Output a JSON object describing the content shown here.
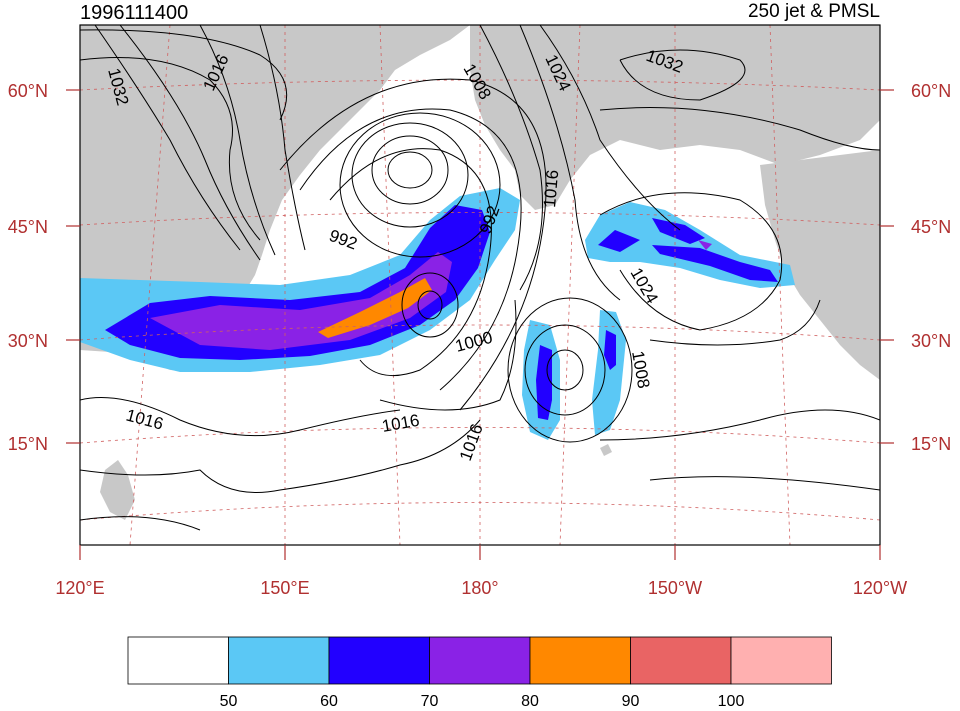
{
  "header": {
    "left_title": "1996111400",
    "right_title": "250 jet & PMSL"
  },
  "lat_labels": [
    "60°N",
    "45°N",
    "30°N",
    "15°N"
  ],
  "lon_labels": [
    "120°E",
    "150°E",
    "180°",
    "150°W",
    "120°W"
  ],
  "isobar_labels": [
    "1032",
    "1016",
    "1008",
    "1024",
    "1032",
    "992",
    "992",
    "1016",
    "1000",
    "1024",
    "1008",
    "1016",
    "1016",
    "1016"
  ],
  "colorbar": {
    "tick_labels": [
      "50",
      "60",
      "70",
      "80",
      "90",
      "100"
    ],
    "colors": [
      "#ffffff",
      "#5bc8f5",
      "#2200ff",
      "#8a22e6",
      "#ff8800",
      "#e96464",
      "#ffb0b0"
    ]
  },
  "colors": {
    "land": "#c8c8c8",
    "ocean": "#ffffff",
    "grid": "#d06060",
    "label": "#b03030",
    "contour": "#000000"
  }
}
